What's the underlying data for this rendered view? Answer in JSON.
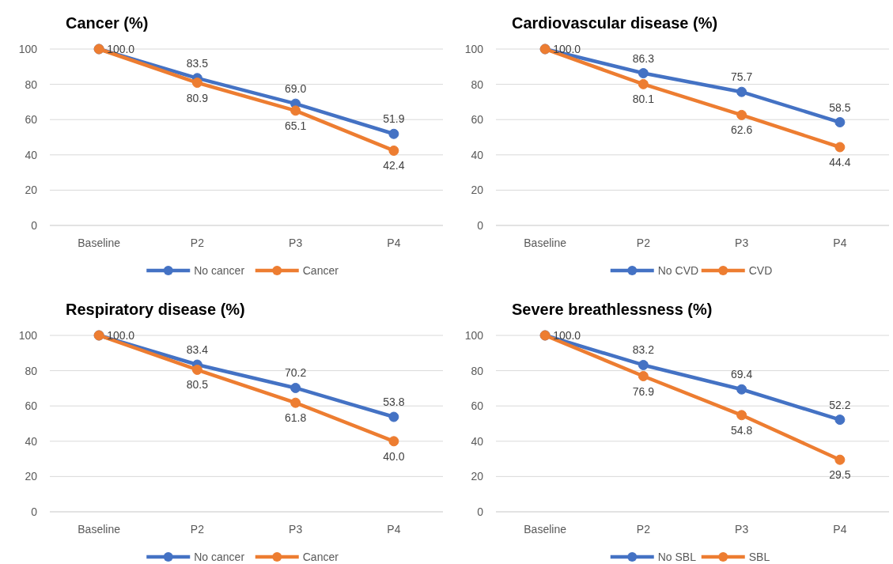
{
  "chart_data": [
    {
      "type": "line",
      "title": "Cancer (%)",
      "categories": [
        "Baseline",
        "P2",
        "P3",
        "P4"
      ],
      "series": [
        {
          "name": "No cancer",
          "color": "#4472c4",
          "values": [
            100.0,
            83.5,
            69.0,
            51.9
          ],
          "value_labels": [
            "100.0",
            "83.5",
            "69.0",
            "51.9"
          ]
        },
        {
          "name": "Cancer",
          "color": "#ed7d31",
          "values": [
            100.0,
            80.9,
            65.1,
            42.4
          ],
          "value_labels": [
            null,
            "80.9",
            "65.1",
            "42.4"
          ]
        }
      ],
      "ylim": [
        0,
        100
      ],
      "yticks": [
        0,
        20,
        40,
        60,
        80,
        100
      ],
      "grid": "y",
      "legend": "bottom",
      "marker": "circle",
      "line_style": "solid"
    },
    {
      "type": "line",
      "title": "Cardiovascular disease (%)",
      "categories": [
        "Baseline",
        "P2",
        "P3",
        "P4"
      ],
      "series": [
        {
          "name": "No CVD",
          "color": "#4472c4",
          "values": [
            100.0,
            86.3,
            75.7,
            58.5
          ],
          "value_labels": [
            "100.0",
            "86.3",
            "75.7",
            "58.5"
          ]
        },
        {
          "name": "CVD",
          "color": "#ed7d31",
          "values": [
            100.0,
            80.1,
            62.6,
            44.4
          ],
          "value_labels": [
            null,
            "80.1",
            "62.6",
            "44.4"
          ]
        }
      ],
      "ylim": [
        0,
        100
      ],
      "yticks": [
        0,
        20,
        40,
        60,
        80,
        100
      ],
      "grid": "y",
      "legend": "bottom",
      "marker": "circle",
      "line_style": "solid"
    },
    {
      "type": "line",
      "title": "Respiratory disease (%)",
      "categories": [
        "Baseline",
        "P2",
        "P3",
        "P4"
      ],
      "series": [
        {
          "name": "No cancer",
          "color": "#4472c4",
          "values": [
            100.0,
            83.4,
            70.2,
            53.8
          ],
          "value_labels": [
            "100.0",
            "83.4",
            "70.2",
            "53.8"
          ]
        },
        {
          "name": "Cancer",
          "color": "#ed7d31",
          "values": [
            100.0,
            80.5,
            61.8,
            40.0
          ],
          "value_labels": [
            null,
            "80.5",
            "61.8",
            "40.0"
          ]
        }
      ],
      "ylim": [
        0,
        100
      ],
      "yticks": [
        0,
        20,
        40,
        60,
        80,
        100
      ],
      "grid": "y",
      "legend": "bottom",
      "marker": "circle",
      "line_style": "solid"
    },
    {
      "type": "line",
      "title": "Severe breathlessness (%)",
      "categories": [
        "Baseline",
        "P2",
        "P3",
        "P4"
      ],
      "series": [
        {
          "name": "No SBL",
          "color": "#4472c4",
          "values": [
            100.0,
            83.2,
            69.4,
            52.2
          ],
          "value_labels": [
            "100.0",
            "83.2",
            "69.4",
            "52.2"
          ]
        },
        {
          "name": "SBL",
          "color": "#ed7d31",
          "values": [
            100.0,
            76.9,
            54.8,
            29.5
          ],
          "value_labels": [
            null,
            "76.9",
            "54.8",
            "29.5"
          ]
        }
      ],
      "ylim": [
        0,
        100
      ],
      "yticks": [
        0,
        20,
        40,
        60,
        80,
        100
      ],
      "grid": "y",
      "legend": "bottom",
      "marker": "circle",
      "line_style": "solid"
    }
  ]
}
